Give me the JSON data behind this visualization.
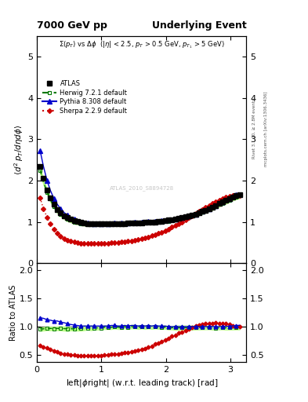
{
  "title_left": "7000 GeV pp",
  "title_right": "Underlying Event",
  "subtitle": "Σ(p_{T}) vs Δϕ (|η| < 2.5, p_{T} > 0.5 GeV, p_{T_{1}} > 5 GeV)",
  "ylabel_main": "⟨d² p_{T}/dηdϕ⟩",
  "ylabel_ratio": "Ratio to ATLAS",
  "xlabel": "left|ϕright| (w.r.t. leading track) [rad]",
  "right_label1": "Rivet 3.1.10, ≥ 2.8M events",
  "right_label2": "mcplots.cern.ch [arXiv:1306.3436]",
  "watermark": "ATLAS_2010_S8894728",
  "legend": [
    "ATLAS",
    "Herwig 7.2.1 default",
    "Pythia 8.308 default",
    "Sherpa 2.2.9 default"
  ],
  "x_data": [
    0.05,
    0.1,
    0.157,
    0.209,
    0.262,
    0.314,
    0.366,
    0.419,
    0.471,
    0.524,
    0.576,
    0.628,
    0.681,
    0.733,
    0.785,
    0.838,
    0.89,
    0.942,
    0.995,
    1.047,
    1.1,
    1.152,
    1.204,
    1.257,
    1.309,
    1.361,
    1.414,
    1.466,
    1.518,
    1.571,
    1.623,
    1.676,
    1.728,
    1.78,
    1.833,
    1.885,
    1.937,
    1.99,
    2.042,
    2.094,
    2.147,
    2.199,
    2.251,
    2.304,
    2.356,
    2.409,
    2.461,
    2.513,
    2.566,
    2.618,
    2.67,
    2.723,
    2.775,
    2.827,
    2.88,
    2.932,
    2.984,
    3.037,
    3.089,
    3.142
  ],
  "atlas_y": [
    2.35,
    2.05,
    1.78,
    1.58,
    1.43,
    1.3,
    1.22,
    1.15,
    1.1,
    1.06,
    1.03,
    1.01,
    0.99,
    0.97,
    0.96,
    0.96,
    0.95,
    0.95,
    0.95,
    0.95,
    0.95,
    0.95,
    0.95,
    0.96,
    0.96,
    0.96,
    0.97,
    0.97,
    0.97,
    0.98,
    0.98,
    0.99,
    0.99,
    1.0,
    1.0,
    1.01,
    1.02,
    1.03,
    1.04,
    1.05,
    1.07,
    1.08,
    1.1,
    1.12,
    1.14,
    1.16,
    1.19,
    1.22,
    1.25,
    1.28,
    1.32,
    1.36,
    1.4,
    1.44,
    1.48,
    1.52,
    1.56,
    1.6,
    1.63,
    1.65
  ],
  "herwig_y": [
    2.25,
    1.97,
    1.72,
    1.53,
    1.38,
    1.26,
    1.18,
    1.11,
    1.06,
    1.02,
    0.99,
    0.97,
    0.96,
    0.95,
    0.94,
    0.94,
    0.93,
    0.93,
    0.93,
    0.94,
    0.94,
    0.94,
    0.95,
    0.95,
    0.95,
    0.96,
    0.96,
    0.97,
    0.97,
    0.97,
    0.98,
    0.98,
    0.99,
    0.99,
    1.0,
    1.0,
    1.01,
    1.02,
    1.02,
    1.03,
    1.05,
    1.06,
    1.08,
    1.1,
    1.12,
    1.14,
    1.17,
    1.2,
    1.23,
    1.26,
    1.3,
    1.33,
    1.37,
    1.41,
    1.45,
    1.49,
    1.53,
    1.57,
    1.6,
    1.62
  ],
  "herwig_band_lo": [
    2.18,
    1.91,
    1.67,
    1.48,
    1.34,
    1.22,
    1.14,
    1.07,
    1.02,
    0.99,
    0.96,
    0.94,
    0.92,
    0.91,
    0.91,
    0.9,
    0.9,
    0.9,
    0.9,
    0.91,
    0.91,
    0.91,
    0.92,
    0.92,
    0.92,
    0.93,
    0.93,
    0.94,
    0.94,
    0.94,
    0.95,
    0.95,
    0.96,
    0.96,
    0.97,
    0.97,
    0.98,
    0.99,
    0.99,
    1.0,
    1.01,
    1.02,
    1.04,
    1.06,
    1.08,
    1.1,
    1.13,
    1.16,
    1.19,
    1.22,
    1.26,
    1.29,
    1.33,
    1.37,
    1.41,
    1.44,
    1.48,
    1.52,
    1.55,
    1.57
  ],
  "herwig_band_hi": [
    2.32,
    2.03,
    1.77,
    1.58,
    1.42,
    1.3,
    1.22,
    1.15,
    1.1,
    1.05,
    1.02,
    1.0,
    1.0,
    0.99,
    0.97,
    0.98,
    0.96,
    0.96,
    0.96,
    0.97,
    0.97,
    0.97,
    0.98,
    0.98,
    0.98,
    0.99,
    0.99,
    1.0,
    1.0,
    1.0,
    1.01,
    1.01,
    1.02,
    1.02,
    1.03,
    1.03,
    1.04,
    1.05,
    1.05,
    1.06,
    1.09,
    1.1,
    1.12,
    1.14,
    1.16,
    1.18,
    1.21,
    1.24,
    1.27,
    1.3,
    1.34,
    1.37,
    1.41,
    1.45,
    1.49,
    1.54,
    1.58,
    1.62,
    1.65,
    1.67
  ],
  "pythia_y": [
    2.72,
    2.35,
    2.0,
    1.76,
    1.57,
    1.43,
    1.32,
    1.23,
    1.16,
    1.1,
    1.06,
    1.03,
    1.0,
    0.98,
    0.97,
    0.97,
    0.96,
    0.96,
    0.96,
    0.96,
    0.96,
    0.97,
    0.97,
    0.97,
    0.97,
    0.98,
    0.98,
    0.99,
    0.99,
    0.99,
    1.0,
    1.0,
    1.01,
    1.01,
    1.02,
    1.02,
    1.03,
    1.04,
    1.04,
    1.05,
    1.07,
    1.08,
    1.1,
    1.12,
    1.14,
    1.16,
    1.19,
    1.22,
    1.25,
    1.28,
    1.32,
    1.36,
    1.4,
    1.44,
    1.48,
    1.53,
    1.57,
    1.62,
    1.66,
    1.69
  ],
  "sherpa_y": [
    1.58,
    1.32,
    1.11,
    0.95,
    0.82,
    0.72,
    0.65,
    0.6,
    0.56,
    0.53,
    0.51,
    0.49,
    0.48,
    0.48,
    0.47,
    0.47,
    0.47,
    0.47,
    0.47,
    0.48,
    0.48,
    0.49,
    0.49,
    0.5,
    0.51,
    0.52,
    0.53,
    0.54,
    0.55,
    0.57,
    0.59,
    0.61,
    0.63,
    0.66,
    0.69,
    0.72,
    0.75,
    0.79,
    0.83,
    0.87,
    0.91,
    0.96,
    1.0,
    1.05,
    1.1,
    1.15,
    1.2,
    1.25,
    1.3,
    1.35,
    1.4,
    1.44,
    1.49,
    1.53,
    1.57,
    1.6,
    1.62,
    1.63,
    1.64,
    1.64
  ],
  "atlas_color": "#000000",
  "herwig_color": "#007700",
  "pythia_color": "#0000cc",
  "sherpa_color": "#cc0000",
  "herwig_band_color": "#bbff88",
  "ylim_main": [
    0.0,
    5.5
  ],
  "ylim_ratio": [
    0.38,
    2.12
  ],
  "xlim": [
    0.0,
    3.25
  ],
  "yticks_main": [
    0,
    1,
    2,
    3,
    4,
    5
  ],
  "yticks_ratio": [
    0.5,
    1.0,
    1.5,
    2.0
  ],
  "xticks": [
    0,
    1,
    2,
    3
  ]
}
